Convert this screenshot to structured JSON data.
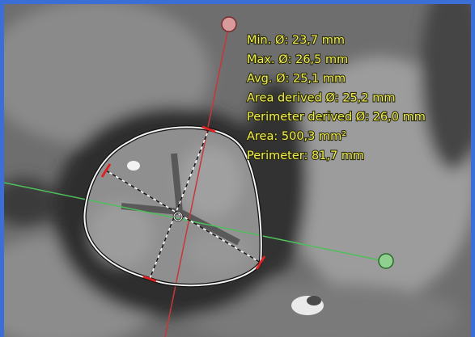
{
  "measurements": [
    "Min. Ø: 23,7 mm",
    "Max. Ø: 26,5 mm",
    "Avg. Ø: 25,1 mm",
    "Area derived Ø: 25,2 mm",
    "Perimeter derived Ø: 26,0 mm",
    "Area: 500,3 mm²",
    "Perimeter: 81,7 mm"
  ]
}
